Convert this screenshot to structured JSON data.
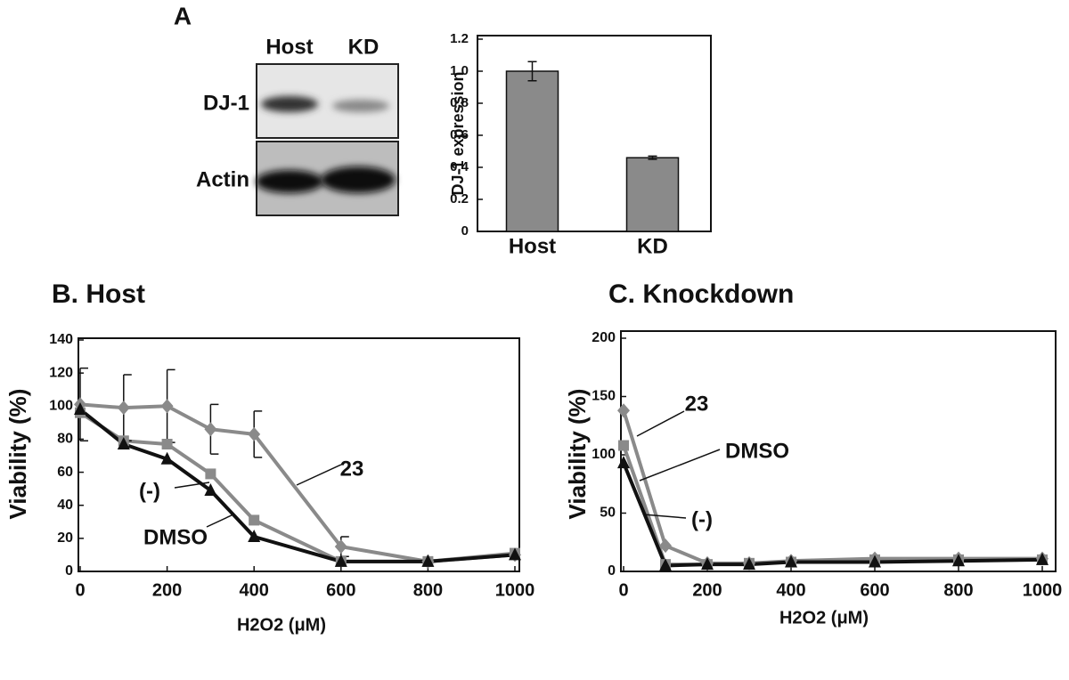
{
  "blot": {
    "panel_label": "A",
    "lanes": [
      "Host",
      "KD"
    ],
    "rows": [
      "DJ-1",
      "Actin"
    ]
  },
  "chart_data": [
    {
      "type": "bar",
      "ylabel": "DJ-1 expression",
      "categories": [
        "Host",
        "KD"
      ],
      "values": [
        1.0,
        0.46
      ],
      "errors": [
        0.06,
        0.01
      ],
      "color": "#8a8a8a",
      "ylim": [
        0,
        1.2
      ],
      "yticks": [
        0,
        0.2,
        0.4,
        0.6,
        0.8,
        {
          "value": 1,
          "label": "1.0"
        },
        1.2
      ]
    },
    {
      "type": "line",
      "title": "B. Host",
      "xlabel": "H2O2 (μM)",
      "ylabel": "Viability (%)",
      "x": [
        0,
        100,
        200,
        300,
        400,
        600,
        800,
        1000
      ],
      "xlim": [
        0,
        1000
      ],
      "xticks": [
        0,
        200,
        400,
        600,
        800,
        1000
      ],
      "ylim": [
        0,
        140
      ],
      "yticks": [
        0,
        20,
        40,
        60,
        80,
        100,
        120,
        140
      ],
      "series": [
        {
          "name": "23",
          "color": "#8a8a8a",
          "marker": "diamond",
          "values": [
            101,
            99,
            100,
            86,
            83,
            15,
            6,
            10
          ],
          "errors": [
            22,
            20,
            22,
            15,
            14,
            6,
            null,
            null
          ]
        },
        {
          "name": "DMSO",
          "color": "#8a8a8a",
          "marker": "square",
          "values": [
            96,
            79,
            77,
            59,
            31,
            6,
            6,
            11
          ]
        },
        {
          "name": "(-)",
          "color": "#111111",
          "marker": "triangle",
          "values": [
            98,
            77,
            68,
            49,
            21,
            6,
            6,
            10
          ]
        }
      ]
    },
    {
      "type": "line",
      "title": "C. Knockdown",
      "xlabel": "H2O2 (μM)",
      "ylabel": "Viability (%)",
      "x": [
        0,
        100,
        200,
        300,
        400,
        600,
        800,
        1000
      ],
      "xlim": [
        0,
        1000
      ],
      "xticks": [
        0,
        200,
        400,
        600,
        800,
        1000
      ],
      "ylim": [
        0,
        200
      ],
      "yticks": [
        0,
        50,
        100,
        150,
        200
      ],
      "series": [
        {
          "name": "23",
          "color": "#8a8a8a",
          "marker": "diamond",
          "values": [
            138,
            22,
            7,
            7,
            9,
            11,
            11,
            11
          ]
        },
        {
          "name": "DMSO",
          "color": "#8a8a8a",
          "marker": "square",
          "values": [
            108,
            6,
            6,
            7,
            8,
            10,
            10,
            10
          ]
        },
        {
          "name": "(-)",
          "color": "#111111",
          "marker": "triangle",
          "values": [
            93,
            5,
            6,
            6,
            8,
            8,
            9,
            10
          ]
        }
      ]
    }
  ]
}
